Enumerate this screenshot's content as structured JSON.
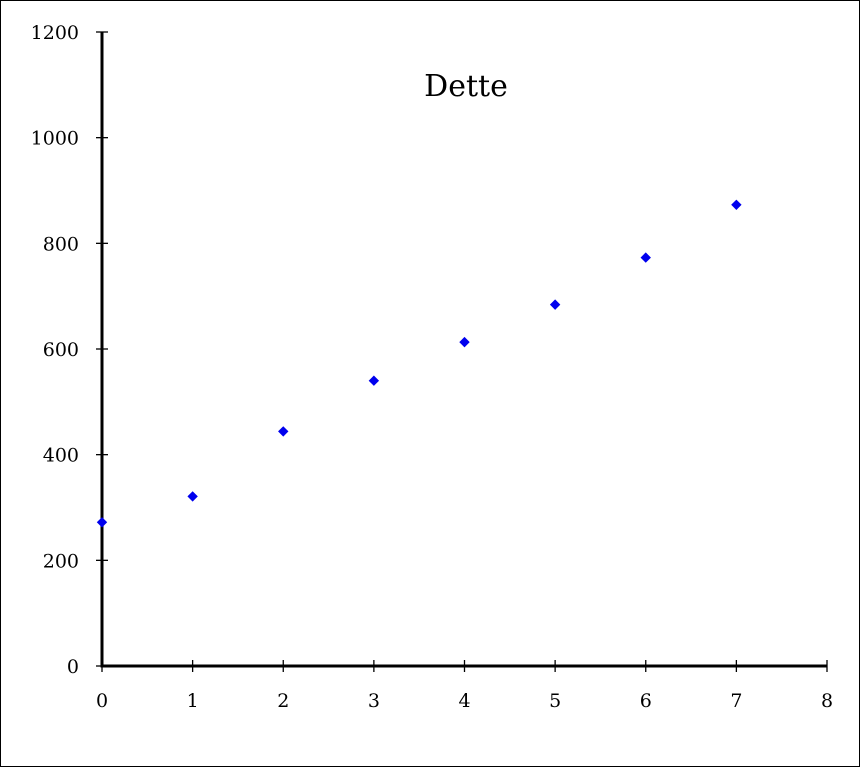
{
  "chart_data": {
    "type": "scatter",
    "title": "Dette",
    "xlabel": "",
    "ylabel": "",
    "xlim": [
      0,
      8
    ],
    "ylim": [
      0,
      1200
    ],
    "x_ticks": [
      0,
      1,
      2,
      3,
      4,
      5,
      6,
      7,
      8
    ],
    "y_ticks": [
      0,
      200,
      400,
      600,
      800,
      1000,
      1200
    ],
    "grid": false,
    "legend": "none",
    "marker": "diamond",
    "marker_color": "#0000ee",
    "series": [
      {
        "x": [
          0,
          1,
          2,
          3,
          4,
          5,
          6,
          7
        ],
        "y": [
          272,
          321,
          444,
          540,
          613,
          684,
          773,
          873
        ]
      }
    ]
  }
}
